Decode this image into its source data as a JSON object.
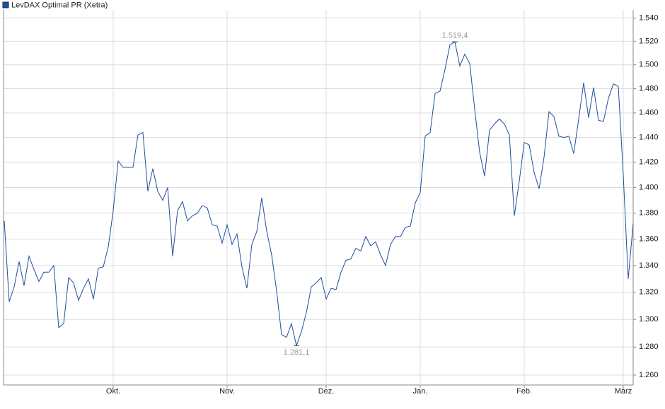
{
  "chart_data": {
    "type": "line",
    "log_scale": true,
    "grid": true,
    "legend": "top-left",
    "series": [
      {
        "name": "LevDAX Optimal PR (Xetra)",
        "color": "#1f4e9c",
        "values": [
          1.374,
          1.313,
          1.324,
          1.343,
          1.325,
          1.347,
          1.337,
          1.328,
          1.335,
          1.335,
          1.34,
          1.294,
          1.297,
          1.331,
          1.327,
          1.314,
          1.323,
          1.33,
          1.315,
          1.338,
          1.339,
          1.354,
          1.382,
          1.421,
          1.416,
          1.416,
          1.416,
          1.442,
          1.444,
          1.397,
          1.415,
          1.397,
          1.39,
          1.4,
          1.347,
          1.382,
          1.389,
          1.374,
          1.378,
          1.38,
          1.386,
          1.384,
          1.371,
          1.37,
          1.357,
          1.371,
          1.356,
          1.364,
          1.339,
          1.323,
          1.356,
          1.366,
          1.392,
          1.366,
          1.348,
          1.321,
          1.289,
          1.287,
          1.297,
          1.2811,
          1.291,
          1.305,
          1.324,
          1.327,
          1.331,
          1.315,
          1.323,
          1.322,
          1.335,
          1.344,
          1.345,
          1.353,
          1.351,
          1.362,
          1.355,
          1.358,
          1.348,
          1.34,
          1.356,
          1.362,
          1.362,
          1.369,
          1.37,
          1.388,
          1.396,
          1.441,
          1.444,
          1.476,
          1.478,
          1.496,
          1.517,
          1.5194,
          1.499,
          1.509,
          1.501,
          1.463,
          1.428,
          1.409,
          1.446,
          1.451,
          1.455,
          1.451,
          1.442,
          1.378,
          1.405,
          1.436,
          1.434,
          1.412,
          1.399,
          1.424,
          1.461,
          1.457,
          1.441,
          1.44,
          1.441,
          1.427,
          1.455,
          1.485,
          1.456,
          1.481,
          1.454,
          1.453,
          1.472,
          1.484,
          1.482,
          1.41,
          1.33,
          1.372
        ]
      }
    ],
    "annotations": [
      {
        "index": 91,
        "label": "1.519,4"
      },
      {
        "index": 59,
        "label": "1.281,1"
      }
    ],
    "xlim": [
      0,
      127
    ],
    "xticks": [
      {
        "value": 22,
        "label": "Okt."
      },
      {
        "value": 45,
        "label": "Nov."
      },
      {
        "value": 65,
        "label": "Dez."
      },
      {
        "value": 84,
        "label": "Jan."
      },
      {
        "value": 105,
        "label": "Feb."
      },
      {
        "value": 125,
        "label": "März"
      }
    ],
    "ylim": [
      1.253,
      1.547
    ],
    "yticks": [
      {
        "value": 1.26,
        "label": "1.260"
      },
      {
        "value": 1.28,
        "label": "1.280"
      },
      {
        "value": 1.3,
        "label": "1.300"
      },
      {
        "value": 1.32,
        "label": "1.320"
      },
      {
        "value": 1.34,
        "label": "1.340"
      },
      {
        "value": 1.36,
        "label": "1.360"
      },
      {
        "value": 1.38,
        "label": "1.380"
      },
      {
        "value": 1.4,
        "label": "1.400"
      },
      {
        "value": 1.42,
        "label": "1.420"
      },
      {
        "value": 1.44,
        "label": "1.440"
      },
      {
        "value": 1.46,
        "label": "1.460"
      },
      {
        "value": 1.48,
        "label": "1.480"
      },
      {
        "value": 1.5,
        "label": "1.500"
      },
      {
        "value": 1.52,
        "label": "1.520"
      },
      {
        "value": 1.54,
        "label": "1.540"
      }
    ]
  }
}
